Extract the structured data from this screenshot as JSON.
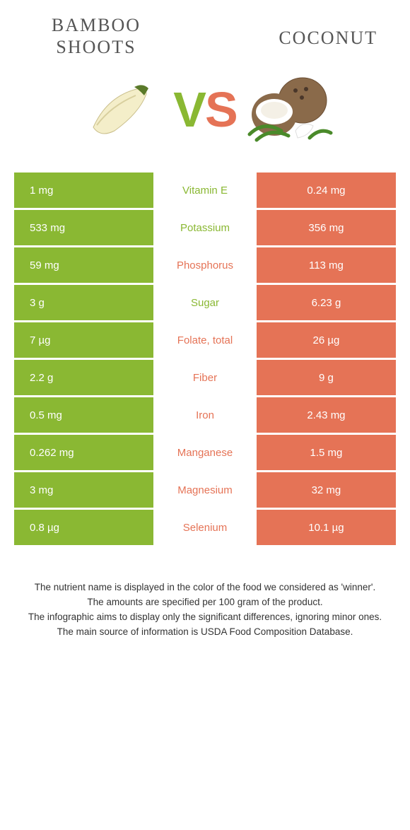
{
  "colors": {
    "left": "#8ab833",
    "right": "#e57356",
    "left_text": "#8ab833",
    "right_text": "#e57356"
  },
  "header": {
    "left_title": "BAMBOO SHOOTS",
    "right_title": "COCONUT",
    "vs_v": "V",
    "vs_s": "S"
  },
  "rows": [
    {
      "left": "1 mg",
      "label": "Vitamin E",
      "right": "0.24 mg",
      "winner": "left"
    },
    {
      "left": "533 mg",
      "label": "Potassium",
      "right": "356 mg",
      "winner": "left"
    },
    {
      "left": "59 mg",
      "label": "Phosphorus",
      "right": "113 mg",
      "winner": "right"
    },
    {
      "left": "3 g",
      "label": "Sugar",
      "right": "6.23 g",
      "winner": "left"
    },
    {
      "left": "7 µg",
      "label": "Folate, total",
      "right": "26 µg",
      "winner": "right"
    },
    {
      "left": "2.2 g",
      "label": "Fiber",
      "right": "9 g",
      "winner": "right"
    },
    {
      "left": "0.5 mg",
      "label": "Iron",
      "right": "2.43 mg",
      "winner": "right"
    },
    {
      "left": "0.262 mg",
      "label": "Manganese",
      "right": "1.5 mg",
      "winner": "right"
    },
    {
      "left": "3 mg",
      "label": "Magnesium",
      "right": "32 mg",
      "winner": "right"
    },
    {
      "left": "0.8 µg",
      "label": "Selenium",
      "right": "10.1 µg",
      "winner": "right"
    }
  ],
  "footer": {
    "line1": "The nutrient name is displayed in the color of the food we considered as 'winner'.",
    "line2": "The amounts are specified per 100 gram of the product.",
    "line3": "The infographic aims to display only the significant differences, ignoring minor ones.",
    "line4": "The main source of information is USDA Food Composition Database."
  }
}
